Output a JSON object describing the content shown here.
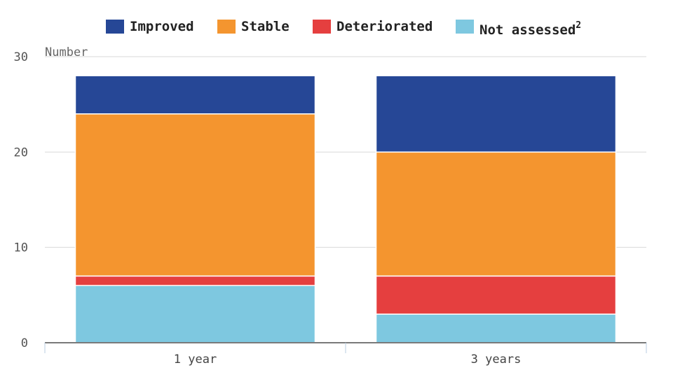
{
  "chart_data": {
    "type": "bar",
    "stacked": true,
    "categories": [
      "1 year",
      "3 years"
    ],
    "series": [
      {
        "name": "Not assessed",
        "name_sup": "2",
        "color": "#7ec8e0",
        "values": [
          6,
          3
        ]
      },
      {
        "name": "Deteriorated",
        "color": "#e53f3f",
        "values": [
          1,
          4
        ]
      },
      {
        "name": "Stable",
        "color": "#f4952f",
        "values": [
          17,
          13
        ]
      },
      {
        "name": "Improved",
        "color": "#264796",
        "values": [
          4,
          8
        ]
      }
    ],
    "legend_order": [
      "Improved",
      "Stable",
      "Deteriorated",
      "Not assessed"
    ],
    "legend_position": "top",
    "ylabel": "Number",
    "ylim": [
      0,
      30
    ],
    "yticks": [
      0,
      10,
      20,
      30
    ],
    "grid": true
  }
}
